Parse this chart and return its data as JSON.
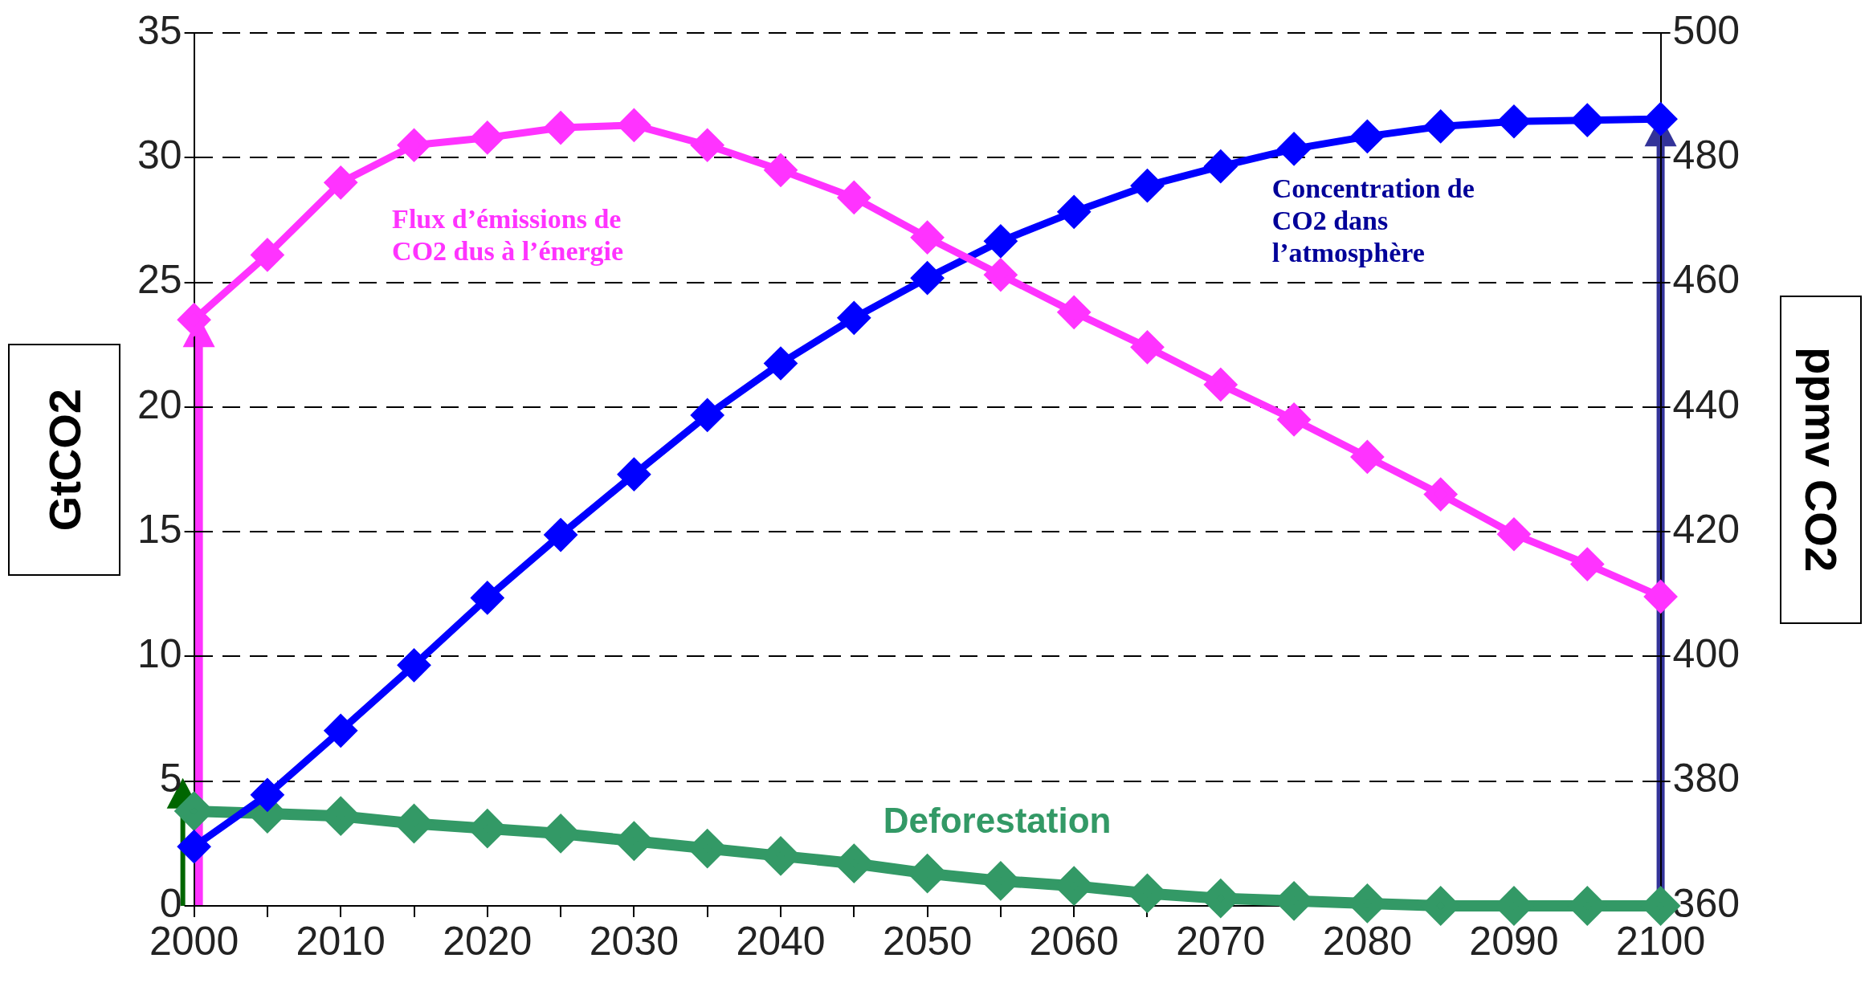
{
  "chart_data": {
    "type": "line",
    "ylabel": "GtCO2",
    "y2label": "ppmv CO2",
    "x": [
      2000,
      2005,
      2010,
      2015,
      2020,
      2025,
      2030,
      2035,
      2040,
      2045,
      2050,
      2055,
      2060,
      2065,
      2070,
      2075,
      2080,
      2085,
      2090,
      2095,
      2100
    ],
    "series": [
      {
        "name": "Flux d’émissions de CO2 dus à l’énergie",
        "color": "#ff33ff",
        "values": [
          23.5,
          26.1,
          29.0,
          30.5,
          30.8,
          31.2,
          31.3,
          30.5,
          29.5,
          28.4,
          26.8,
          25.3,
          23.8,
          22.4,
          20.9,
          19.5,
          18.0,
          16.5,
          14.9,
          13.7,
          12.4
        ]
      },
      {
        "name": "Concentration de CO2 dans l’atmosphère",
        "color": "#0000ff",
        "axis": "y2",
        "values": [
          369.5,
          377.8,
          388.1,
          398.6,
          409.4,
          419.5,
          429.2,
          438.7,
          447.0,
          454.3,
          460.7,
          466.6,
          471.3,
          475.5,
          478.6,
          481.4,
          483.4,
          485.0,
          485.8,
          486.0,
          486.2
        ]
      },
      {
        "name": "Deforestation",
        "color": "#339966",
        "values": [
          3.8,
          3.7,
          3.6,
          3.3,
          3.1,
          2.9,
          2.6,
          2.3,
          2.0,
          1.7,
          1.3,
          1.0,
          0.8,
          0.5,
          0.3,
          0.2,
          0.1,
          0,
          0,
          0,
          0
        ]
      }
    ],
    "xlim": [
      2000,
      2100
    ],
    "xticks": [
      2000,
      {
        "value": 2005,
        "label": null
      },
      2010,
      {
        "value": 2015,
        "label": null
      },
      2020,
      {
        "value": 2025,
        "label": null
      },
      2030,
      {
        "value": 2035,
        "label": null
      },
      2040,
      {
        "value": 2045,
        "label": null
      },
      2050,
      {
        "value": 2055,
        "label": null
      },
      2060,
      {
        "value": 2065,
        "label": null
      },
      2070,
      {
        "value": 2075,
        "label": null
      },
      2080,
      {
        "value": 2085,
        "label": null
      },
      2090,
      {
        "value": 2095,
        "label": null
      },
      2100
    ],
    "ylim": [
      0,
      35
    ],
    "yticks": [
      0,
      5,
      10,
      15,
      20,
      25,
      30,
      35
    ],
    "y2lim": [
      360,
      500
    ],
    "y2ticks": [
      360,
      380,
      400,
      420,
      440,
      460,
      480,
      500
    ],
    "grid": "y",
    "legend": false,
    "marker": "diamond",
    "line_style": "solid"
  }
}
